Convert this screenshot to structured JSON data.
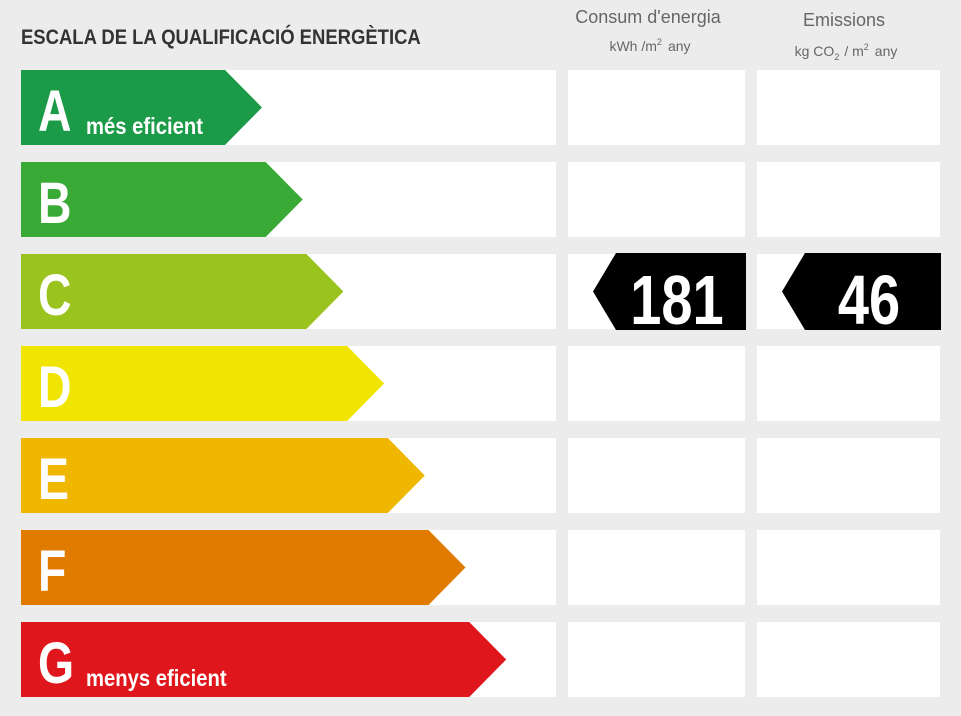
{
  "header": {
    "title": "ESCALA DE LA QUALIFICACIÓ ENERGÈTICA",
    "consumption": {
      "title": "Consum d'energia",
      "unit": [
        "kWh /m",
        "2",
        "any"
      ]
    },
    "emissions": {
      "title": "Emissions",
      "unit": [
        "kg CO",
        "2",
        "/ m",
        "2",
        "any"
      ]
    }
  },
  "rows": [
    {
      "letter": "A",
      "note": "més eficient",
      "color": "#1b9a47"
    },
    {
      "letter": "B",
      "color": "#3aaa36"
    },
    {
      "letter": "C",
      "color": "#9bc31d",
      "consumption": 181,
      "emissions": 46
    },
    {
      "letter": "D",
      "color": "#f0e500"
    },
    {
      "letter": "E",
      "color": "#f0b700"
    },
    {
      "letter": "F",
      "color": "#e07b00"
    },
    {
      "letter": "G",
      "note": "menys eficient",
      "color": "#df171c"
    }
  ]
}
